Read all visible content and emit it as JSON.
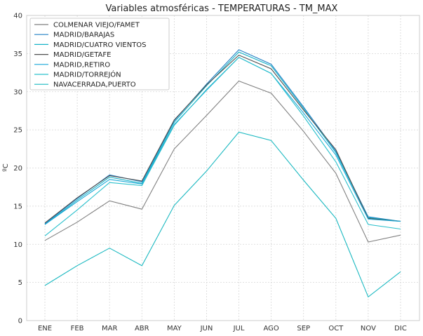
{
  "chart_data": {
    "type": "line",
    "title": "Variables atmosféricas - TEMPERATURAS - TM_MAX",
    "xlabel": "",
    "ylabel": "ºC",
    "categories": [
      "ENE",
      "FEB",
      "MAR",
      "ABR",
      "MAY",
      "JUN",
      "JUL",
      "AGO",
      "SEP",
      "OCT",
      "NOV",
      "DIC"
    ],
    "ylim": [
      0,
      40
    ],
    "yticks": [
      0,
      5,
      10,
      15,
      20,
      25,
      30,
      35,
      40
    ],
    "grid": true,
    "legend_position": "top-left",
    "series": [
      {
        "name": "COLMENAR VIEJO/FAMET",
        "color": "#808080",
        "values": [
          10.5,
          12.9,
          15.7,
          14.6,
          22.5,
          26.9,
          31.4,
          29.8,
          24.8,
          19.3,
          10.3,
          11.2
        ]
      },
      {
        "name": "MADRID/BARAJAS",
        "color": "#1f7fc4",
        "values": [
          12.7,
          16.0,
          19.1,
          18.2,
          26.2,
          31.0,
          35.5,
          33.6,
          28.0,
          22.2,
          13.6,
          13.0
        ]
      },
      {
        "name": "MADRID/CUATRO VIENTOS",
        "color": "#17b3c8",
        "values": [
          12.6,
          15.8,
          18.8,
          18.0,
          26.0,
          30.8,
          35.2,
          33.4,
          27.8,
          22.0,
          13.5,
          13.0
        ]
      },
      {
        "name": "MADRID/GETAFE",
        "color": "#505050",
        "values": [
          12.8,
          16.1,
          19.0,
          18.3,
          26.3,
          30.9,
          34.8,
          33.0,
          27.6,
          22.4,
          13.4,
          13.0
        ]
      },
      {
        "name": "MADRID,RETIRO",
        "color": "#1aa8d8",
        "values": [
          12.6,
          15.6,
          18.5,
          17.9,
          25.7,
          30.2,
          34.5,
          32.4,
          27.2,
          21.7,
          13.3,
          13.0
        ]
      },
      {
        "name": "MADRID/TORREJÓN",
        "color": "#2ac0cc",
        "values": [
          11.1,
          14.5,
          18.1,
          17.7,
          25.6,
          30.3,
          34.5,
          32.4,
          26.8,
          20.8,
          12.6,
          12.0
        ]
      },
      {
        "name": "NAVACERRADA,PUERTO",
        "color": "#19b8c0",
        "values": [
          4.6,
          7.2,
          9.5,
          7.2,
          15.1,
          19.6,
          24.7,
          23.6,
          18.4,
          13.4,
          3.1,
          6.4
        ]
      }
    ]
  }
}
